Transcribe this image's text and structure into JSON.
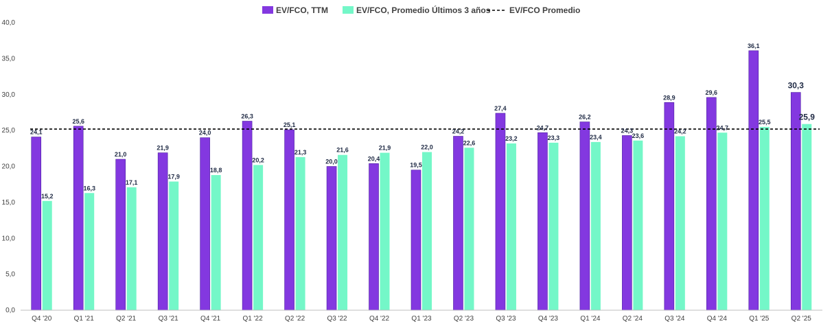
{
  "chart_data": {
    "type": "bar",
    "title": "",
    "xlabel": "",
    "ylabel": "",
    "ylim": [
      0,
      40
    ],
    "y_ticks": [
      "0,0",
      "5,0",
      "10,0",
      "15,0",
      "20,0",
      "25,0",
      "30,0",
      "35,0",
      "40,0"
    ],
    "grid": false,
    "legend_position": "top-center",
    "categories": [
      "Q4 '20",
      "Q1 '21",
      "Q2 '21",
      "Q3 '21",
      "Q4 '21",
      "Q1 '22",
      "Q2 '22",
      "Q3 '22",
      "Q4 '22",
      "Q1 '23",
      "Q2 '23",
      "Q3 '23",
      "Q4 '23",
      "Q1 '24",
      "Q2 '24",
      "Q3 '24",
      "Q4 '24",
      "Q1 '25",
      "Q2 '25"
    ],
    "series": [
      {
        "name": "EV/FCO, TTM",
        "color": "#8338e0",
        "values": [
          24.1,
          25.6,
          21.0,
          21.9,
          24.0,
          26.3,
          25.1,
          20.0,
          20.4,
          19.5,
          24.2,
          27.4,
          24.7,
          26.2,
          24.3,
          28.9,
          29.6,
          36.1,
          30.3
        ],
        "labels": [
          "24,1",
          "25,6",
          "21,0",
          "21,9",
          "24,0",
          "26,3",
          "25,1",
          "20,0",
          "20,4",
          "19,5",
          "24,2",
          "27,4",
          "24,7",
          "26,2",
          "24,3",
          "28,9",
          "29,6",
          "36,1",
          "30,3"
        ]
      },
      {
        "name": "EV/FCO, Promedio Últimos 3 años",
        "color": "#74f7c8",
        "values": [
          15.2,
          16.3,
          17.1,
          17.9,
          18.8,
          20.2,
          21.3,
          21.6,
          21.9,
          22.0,
          22.6,
          23.2,
          23.3,
          23.4,
          23.6,
          24.2,
          24.7,
          25.5,
          25.9
        ],
        "labels": [
          "15,2",
          "16,3",
          "17,1",
          "17,9",
          "18,8",
          "20,2",
          "21,3",
          "21,6",
          "21,9",
          "22,0",
          "22,6",
          "23,2",
          "23,3",
          "23,4",
          "23,6",
          "24,2",
          "24,7",
          "25,5",
          "25,9"
        ]
      }
    ],
    "reference_line": {
      "name": "EV/FCO Promedio",
      "value": 25.2,
      "color": "#000000",
      "style": "dashed"
    }
  }
}
